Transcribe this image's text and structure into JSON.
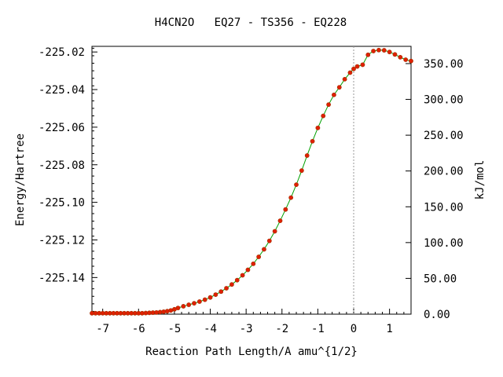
{
  "chart_data": {
    "type": "line",
    "title": "H4CN2O   EQ27 - TS356 - EQ228",
    "xlabel": "Reaction Path Length/A amu^{1/2}",
    "ylabel": "Energy/Hartree",
    "y2label": "kJ/mol",
    "xlim": [
      -7.3,
      1.6
    ],
    "ylim": [
      -225.1595,
      -225.017
    ],
    "y2lim": [
      0.0,
      374.1
    ],
    "x_ticks": [
      -7,
      -6,
      -5,
      -4,
      -3,
      -2,
      -1,
      0,
      1
    ],
    "x_tick_labels": [
      "-7",
      "-6",
      "-5",
      "-4",
      "-3",
      "-2",
      "-1",
      "0",
      "1"
    ],
    "y_ticks": [
      -225.02,
      -225.04,
      -225.06,
      -225.08,
      -225.1,
      -225.12,
      -225.14
    ],
    "y_tick_labels": [
      "-225.02",
      "-225.04",
      "-225.06",
      "-225.08",
      "-225.10",
      "-225.12",
      "-225.14"
    ],
    "y2_ticks": [
      0,
      50,
      100,
      150,
      200,
      250,
      300,
      350
    ],
    "y2_tick_labels": [
      "0.00",
      "50.00",
      "100.00",
      "150.00",
      "200.00",
      "250.00",
      "300.00",
      "350.00"
    ],
    "ts_marker_x": 0,
    "grid": false,
    "series": [
      {
        "line_color": "#00a000",
        "marker_color": "#e02000",
        "x": [
          -7.3,
          -7.2,
          -7.1,
          -7.0,
          -6.9,
          -6.8,
          -6.7,
          -6.6,
          -6.5,
          -6.4,
          -6.3,
          -6.2,
          -6.1,
          -6.0,
          -5.9,
          -5.8,
          -5.7,
          -5.6,
          -5.5,
          -5.4,
          -5.3,
          -5.2,
          -5.1,
          -5.0,
          -4.9,
          -4.75,
          -4.6,
          -4.45,
          -4.3,
          -4.15,
          -4.0,
          -3.85,
          -3.7,
          -3.55,
          -3.4,
          -3.25,
          -3.1,
          -2.95,
          -2.8,
          -2.65,
          -2.5,
          -2.35,
          -2.2,
          -2.05,
          -1.9,
          -1.75,
          -1.6,
          -1.45,
          -1.3,
          -1.15,
          -1.0,
          -0.85,
          -0.7,
          -0.55,
          -0.4,
          -0.25,
          -0.1,
          0.0,
          0.1,
          0.25,
          0.4,
          0.55,
          0.7,
          0.85,
          1.0,
          1.15,
          1.3,
          1.45,
          1.6
        ],
        "y": [
          -225.159,
          -225.159,
          -225.159,
          -225.159,
          -225.159,
          -225.159,
          -225.159,
          -225.159,
          -225.159,
          -225.159,
          -225.159,
          -225.159,
          -225.159,
          -225.159,
          -225.159,
          -225.1589,
          -225.1588,
          -225.1587,
          -225.1586,
          -225.1584,
          -225.1582,
          -225.1579,
          -225.1575,
          -225.1569,
          -225.1562,
          -225.1553,
          -225.1545,
          -225.1537,
          -225.1528,
          -225.1518,
          -225.1506,
          -225.1491,
          -225.1475,
          -225.1457,
          -225.1437,
          -225.1414,
          -225.1388,
          -225.1359,
          -225.1327,
          -225.129,
          -225.125,
          -225.1205,
          -225.1154,
          -225.1098,
          -225.1038,
          -225.0975,
          -225.0906,
          -225.0831,
          -225.0751,
          -225.0675,
          -225.0604,
          -225.054,
          -225.048,
          -225.0428,
          -225.0388,
          -225.0345,
          -225.031,
          -225.029,
          -225.0277,
          -225.0268,
          -225.0215,
          -225.0195,
          -225.019,
          -225.0191,
          -225.02,
          -225.0213,
          -225.0228,
          -225.0241,
          -225.0248
        ]
      }
    ]
  }
}
